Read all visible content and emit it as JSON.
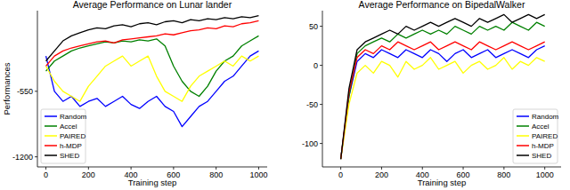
{
  "chart_data": [
    {
      "type": "line",
      "title": "Average Performance on Lunar lander",
      "x_label": "Training step",
      "y_label": "Performances",
      "x": [
        0,
        40,
        80,
        120,
        160,
        200,
        240,
        280,
        320,
        360,
        400,
        440,
        480,
        520,
        560,
        600,
        640,
        680,
        720,
        760,
        800,
        840,
        880,
        920,
        960,
        1000
      ],
      "series": [
        {
          "name": "Random",
          "color": "#0000ff",
          "values": [
            -200,
            -550,
            -650,
            -600,
            -700,
            -650,
            -620,
            -700,
            -650,
            -600,
            -680,
            -720,
            -650,
            -600,
            -700,
            -750,
            -900,
            -800,
            -700,
            -650,
            -550,
            -450,
            -400,
            -300,
            -200,
            -150
          ]
        },
        {
          "name": "Accel",
          "color": "#008000",
          "values": [
            -350,
            -250,
            -200,
            -150,
            -120,
            -100,
            -80,
            -60,
            -70,
            -50,
            -60,
            -40,
            -50,
            -30,
            -100,
            -300,
            -450,
            -550,
            -600,
            -500,
            -350,
            -250,
            -200,
            -100,
            -50,
            0
          ]
        },
        {
          "name": "PAIRED",
          "color": "#ffff00",
          "values": [
            -300,
            -450,
            -550,
            -600,
            -650,
            -500,
            -400,
            -300,
            -250,
            -200,
            -300,
            -250,
            -200,
            -400,
            -550,
            -600,
            -650,
            -500,
            -400,
            -350,
            -300,
            -250,
            -300,
            -200,
            -250,
            -200
          ]
        },
        {
          "name": "h-MDP",
          "color": "#ff0000",
          "values": [
            -300,
            -200,
            -150,
            -120,
            -100,
            -80,
            -60,
            -50,
            -70,
            -40,
            -30,
            -20,
            -10,
            0,
            20,
            10,
            30,
            50,
            60,
            80,
            70,
            100,
            90,
            120,
            130,
            150
          ]
        },
        {
          "name": "SHED",
          "color": "#000000",
          "values": [
            -250,
            -150,
            -50,
            0,
            30,
            60,
            80,
            70,
            100,
            110,
            90,
            120,
            130,
            110,
            140,
            150,
            130,
            160,
            150,
            170,
            160,
            180,
            170,
            190,
            180,
            200
          ]
        }
      ],
      "xlim": [
        -40,
        1040
      ],
      "ylim": [
        -1300,
        250
      ],
      "xticks": [
        0,
        200,
        400,
        600,
        800,
        1000
      ],
      "yticks": [
        -1200,
        -550
      ],
      "legend": "lower left"
    },
    {
      "type": "line",
      "title": "Average Performance on BipedalWalker",
      "x_label": "Training step",
      "x": [
        0,
        40,
        80,
        120,
        160,
        200,
        240,
        280,
        320,
        360,
        400,
        440,
        480,
        520,
        560,
        600,
        640,
        680,
        720,
        760,
        800,
        840,
        880,
        920,
        960,
        1000
      ],
      "series": [
        {
          "name": "Random",
          "color": "#0000ff",
          "values": [
            -120,
            -40,
            5,
            15,
            10,
            20,
            15,
            10,
            20,
            15,
            10,
            20,
            15,
            5,
            15,
            20,
            10,
            15,
            20,
            10,
            15,
            20,
            15,
            10,
            20,
            25
          ]
        },
        {
          "name": "Accel",
          "color": "#008000",
          "values": [
            -120,
            -40,
            15,
            25,
            30,
            35,
            30,
            40,
            35,
            40,
            45,
            40,
            45,
            40,
            50,
            45,
            40,
            50,
            45,
            50,
            45,
            55,
            50,
            45,
            55,
            50
          ]
        },
        {
          "name": "PAIRED",
          "color": "#ffff00",
          "values": [
            -120,
            -50,
            -10,
            0,
            -10,
            5,
            0,
            -15,
            5,
            -5,
            0,
            10,
            -5,
            0,
            5,
            -10,
            0,
            5,
            -5,
            0,
            10,
            -5,
            5,
            0,
            10,
            5
          ]
        },
        {
          "name": "h-MDP",
          "color": "#ff0000",
          "values": [
            -120,
            -35,
            10,
            20,
            15,
            25,
            20,
            30,
            25,
            20,
            25,
            30,
            20,
            25,
            30,
            25,
            20,
            30,
            25,
            20,
            25,
            30,
            25,
            20,
            25,
            30
          ]
        },
        {
          "name": "SHED",
          "color": "#000000",
          "values": [
            -120,
            -30,
            20,
            30,
            35,
            40,
            45,
            40,
            50,
            45,
            50,
            55,
            50,
            55,
            60,
            55,
            50,
            60,
            55,
            60,
            65,
            55,
            60,
            65,
            60,
            65
          ]
        }
      ],
      "xlim": [
        -90,
        1080
      ],
      "ylim": [
        -130,
        70
      ],
      "xticks": [
        0,
        200,
        400,
        600,
        800,
        1000
      ],
      "yticks": [
        -100,
        -50,
        0,
        50
      ],
      "legend": "lower right"
    }
  ]
}
